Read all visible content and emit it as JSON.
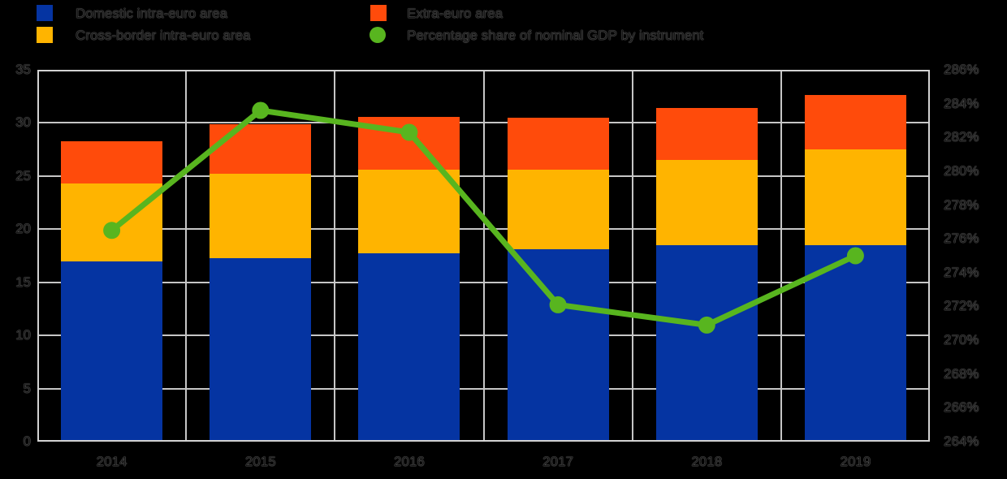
{
  "legend": {
    "items": [
      {
        "label": "Domestic intra-euro area",
        "marker": "square",
        "color": "#0534A2"
      },
      {
        "label": "Extra-euro area",
        "marker": "square",
        "color": "#FF4B0B"
      },
      {
        "label": "Cross-border intra-euro area",
        "marker": "square",
        "color": "#FFB400"
      },
      {
        "label": "Percentage share of nominal GDP by instrument",
        "marker": "circle",
        "color": "#58B51F"
      }
    ]
  },
  "chart_data": {
    "type": "bar",
    "subtype": "stacked-bars-with-line-dual-axis",
    "title": "",
    "categories": [
      "2014",
      "2015",
      "2016",
      "2017",
      "2018",
      "2019"
    ],
    "series": [
      {
        "name": "Domestic intra-euro area",
        "type": "bar",
        "axis": "left",
        "color": "#0534A2",
        "values": [
          17.0,
          17.3,
          17.7,
          18.1,
          18.5,
          18.5
        ]
      },
      {
        "name": "Cross-border intra-euro area",
        "type": "bar",
        "axis": "left",
        "color": "#FFB400",
        "values": [
          7.3,
          7.9,
          7.9,
          7.5,
          8.0,
          9.0
        ]
      },
      {
        "name": "Extra-euro area",
        "type": "bar",
        "axis": "left",
        "color": "#FF4B0B",
        "values": [
          4.0,
          4.7,
          5.0,
          4.9,
          4.9,
          5.1
        ]
      },
      {
        "name": "Percentage share of nominal GDP by instrument",
        "type": "line",
        "axis": "right",
        "color": "#58B51F",
        "values": [
          276.5,
          283.6,
          282.3,
          272.1,
          270.9,
          275.0
        ]
      }
    ],
    "stack_totals": [
      28.3,
      29.9,
      30.6,
      30.5,
      31.4,
      32.6
    ],
    "left_axis": {
      "min": 0,
      "max": 35,
      "step": 5,
      "tick_labels": [
        "35",
        "30",
        "25",
        "20",
        "15",
        "10",
        "5",
        "0"
      ]
    },
    "right_axis": {
      "min": 264,
      "max": 286,
      "step": 2,
      "unit": "%",
      "tick_labels": [
        "286%",
        "284%",
        "282%",
        "280%",
        "278%",
        "276%",
        "274%",
        "272%",
        "270%",
        "268%",
        "266%",
        "264%"
      ]
    },
    "grid": true,
    "legend_position": "top"
  },
  "colors": {
    "background": "#000000",
    "gridline": "#C6C6C6",
    "plot_border": "#D3D3D3",
    "bar_blue": "#0534A2",
    "bar_yellow": "#FFB400",
    "bar_orange": "#FF4B0B",
    "line_green": "#58B51F",
    "text_ghost_edge": "#787878"
  }
}
